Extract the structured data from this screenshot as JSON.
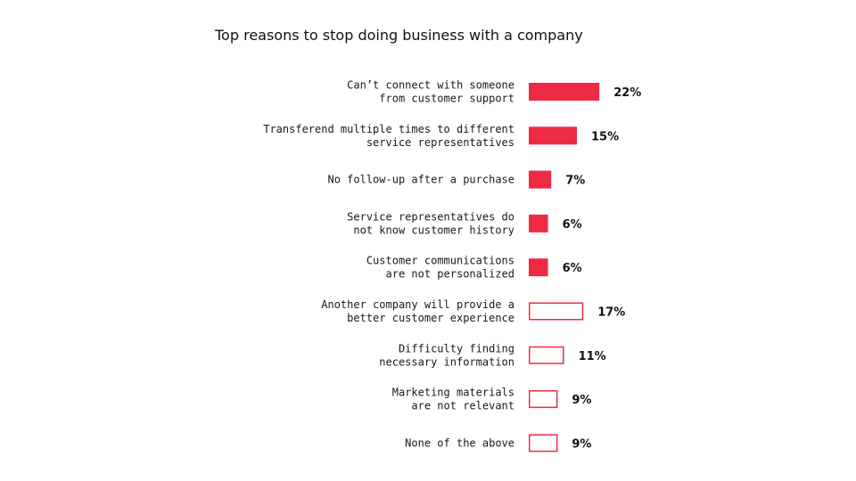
{
  "chart_data": {
    "type": "bar",
    "orientation": "horizontal",
    "title": "Top reasons to stop doing business with a company",
    "categories": [
      [
        "Can’t connect with someone",
        "from customer support"
      ],
      [
        "Transferend multiple times to different",
        "service representatives"
      ],
      [
        "No follow-up after a purchase"
      ],
      [
        "Service representatives do",
        "not know customer history"
      ],
      [
        "Customer communications",
        "are not personalized"
      ],
      [
        "Another company will provide a",
        "better customer experience"
      ],
      [
        "Difficulty finding",
        "necessary information"
      ],
      [
        "Marketing materials",
        "are not relevant"
      ],
      [
        "None of the above"
      ]
    ],
    "values": [
      22,
      15,
      7,
      6,
      6,
      17,
      11,
      9,
      9
    ],
    "value_labels": [
      "22%",
      "15%",
      "7%",
      "6%",
      "6%",
      "17%",
      "11%",
      "9%",
      "9%"
    ],
    "bar_style": [
      "filled",
      "filled",
      "filled",
      "filled",
      "filled",
      "outline",
      "outline",
      "outline",
      "outline"
    ],
    "xlabel": "",
    "ylabel": "",
    "grid": false,
    "legend": "none",
    "colors": {
      "accent": "#ee2b45",
      "outline_fill": "#ffffff"
    }
  }
}
